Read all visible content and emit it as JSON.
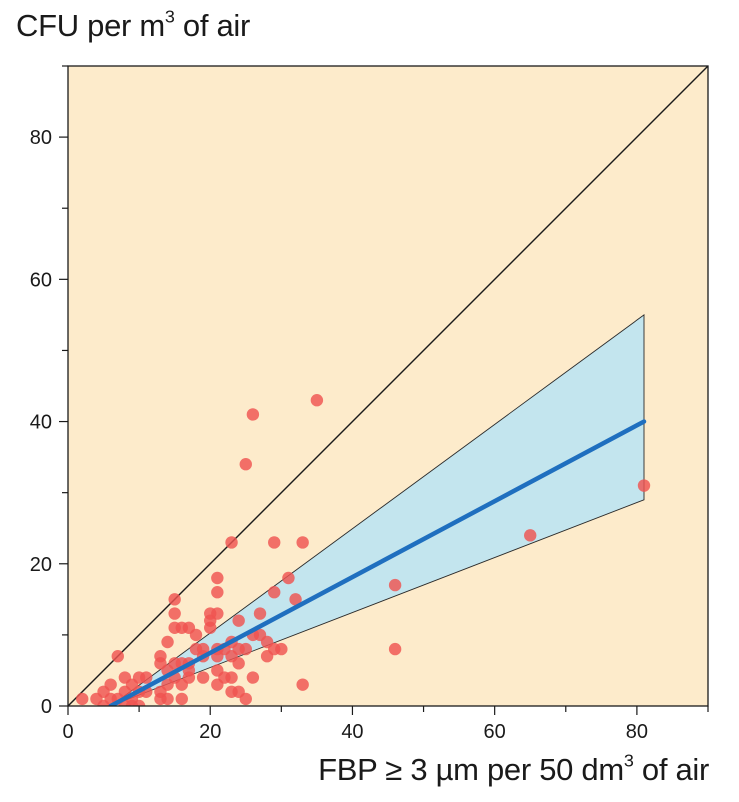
{
  "chart_data": {
    "type": "scatter",
    "title": "",
    "ylabel_main": "CFU per m",
    "ylabel_sup": "3",
    "ylabel_tail": " of air",
    "xlabel_main": "FBP ≥ 3 µm per 50 dm",
    "xlabel_sup": "3",
    "xlabel_tail": " of air",
    "xlim": [
      0,
      90
    ],
    "ylim": [
      0,
      90
    ],
    "xticks": [
      0,
      20,
      40,
      60,
      80
    ],
    "yticks": [
      0,
      20,
      40,
      60,
      80
    ],
    "xtick_labels": [
      "0",
      "20",
      "40",
      "60",
      "80"
    ],
    "ytick_labels": [
      "0",
      "20",
      "40",
      "60",
      "80"
    ],
    "grid": false,
    "identity_line": {
      "from": [
        0,
        0
      ],
      "to": [
        90,
        90
      ]
    },
    "regression_line": {
      "from": [
        6,
        0
      ],
      "to": [
        81,
        40
      ]
    },
    "confidence_band": {
      "upper": [
        [
          6,
          0
        ],
        [
          81,
          55
        ]
      ],
      "lower": [
        [
          6,
          0
        ],
        [
          81,
          29
        ]
      ]
    },
    "points": [
      [
        2,
        1
      ],
      [
        4,
        1
      ],
      [
        5,
        2
      ],
      [
        5,
        0
      ],
      [
        6,
        3
      ],
      [
        6,
        1
      ],
      [
        7,
        7
      ],
      [
        7,
        1
      ],
      [
        8,
        4
      ],
      [
        8,
        2
      ],
      [
        8,
        0
      ],
      [
        9,
        3
      ],
      [
        9,
        1
      ],
      [
        9,
        0
      ],
      [
        10,
        4
      ],
      [
        10,
        2
      ],
      [
        10,
        0
      ],
      [
        11,
        4
      ],
      [
        11,
        2
      ],
      [
        13,
        7
      ],
      [
        13,
        6
      ],
      [
        13,
        2
      ],
      [
        13,
        1
      ],
      [
        14,
        9
      ],
      [
        14,
        5
      ],
      [
        14,
        3
      ],
      [
        14,
        1
      ],
      [
        15,
        15
      ],
      [
        15,
        13
      ],
      [
        15,
        11
      ],
      [
        15,
        6
      ],
      [
        15,
        4
      ],
      [
        16,
        11
      ],
      [
        16,
        6
      ],
      [
        16,
        3
      ],
      [
        16,
        1
      ],
      [
        17,
        11
      ],
      [
        17,
        6
      ],
      [
        17,
        5
      ],
      [
        17,
        4
      ],
      [
        18,
        10
      ],
      [
        18,
        8
      ],
      [
        19,
        8
      ],
      [
        19,
        7
      ],
      [
        19,
        4
      ],
      [
        20,
        13
      ],
      [
        20,
        12
      ],
      [
        20,
        11
      ],
      [
        21,
        18
      ],
      [
        21,
        16
      ],
      [
        21,
        13
      ],
      [
        21,
        8
      ],
      [
        21,
        7
      ],
      [
        21,
        5
      ],
      [
        21,
        3
      ],
      [
        22,
        8
      ],
      [
        22,
        4
      ],
      [
        23,
        23
      ],
      [
        23,
        9
      ],
      [
        23,
        7
      ],
      [
        23,
        4
      ],
      [
        23,
        2
      ],
      [
        24,
        12
      ],
      [
        24,
        8
      ],
      [
        24,
        6
      ],
      [
        24,
        2
      ],
      [
        25,
        34
      ],
      [
        25,
        8
      ],
      [
        25,
        1
      ],
      [
        26,
        41
      ],
      [
        26,
        10
      ],
      [
        26,
        4
      ],
      [
        27,
        13
      ],
      [
        27,
        10
      ],
      [
        28,
        9
      ],
      [
        28,
        7
      ],
      [
        29,
        23
      ],
      [
        29,
        16
      ],
      [
        29,
        8
      ],
      [
        30,
        8
      ],
      [
        31,
        18
      ],
      [
        32,
        15
      ],
      [
        33,
        23
      ],
      [
        33,
        3
      ],
      [
        35,
        43
      ],
      [
        46,
        17
      ],
      [
        46,
        8
      ],
      [
        65,
        24
      ],
      [
        81,
        31
      ]
    ],
    "colors": {
      "background": "#fdebcb",
      "band_fill": "#c3e5ee",
      "regression": "#1f6fbf",
      "points": "#ef5350",
      "frame": "#1a1a1a"
    }
  }
}
